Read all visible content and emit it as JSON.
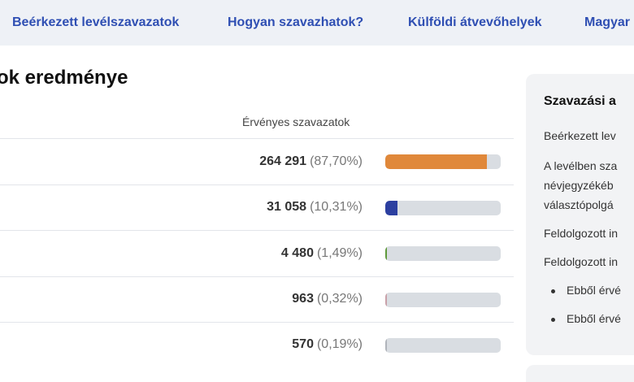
{
  "nav": {
    "links": [
      "Beérkezett levélszavazatok",
      "Hogyan szavazhatok?",
      "Külföldi átvevőhelyek",
      "Magyar"
    ]
  },
  "main": {
    "title": "ok eredménye",
    "column_header": "Érvényes szavazatok",
    "rows": [
      {
        "count": "264 291",
        "percent": "(87,70%)",
        "fraction": 0.877,
        "color": "#e0883a"
      },
      {
        "count": "31 058",
        "percent": "(10,31%)",
        "fraction": 0.1031,
        "color": "#2c3fa0"
      },
      {
        "count": "4 480",
        "percent": "(1,49%)",
        "fraction": 0.0149,
        "color": "#5e9a3a"
      },
      {
        "count": "963",
        "percent": "(0,32%)",
        "fraction": 0.0032,
        "color": "#c9a0a8"
      },
      {
        "count": "570",
        "percent": "(0,19%)",
        "fraction": 0.0019,
        "color": "#b0b4ba"
      }
    ]
  },
  "sidebar": {
    "title": "Szavazási a",
    "lines": [
      "Beérkezett lev",
      "A levélben sza",
      "névjegyzékéb",
      "választópolgá",
      "Feldolgozott in",
      "Feldolgozott in"
    ],
    "bullets": [
      "Ebből érvé",
      "Ebből érvé"
    ]
  }
}
